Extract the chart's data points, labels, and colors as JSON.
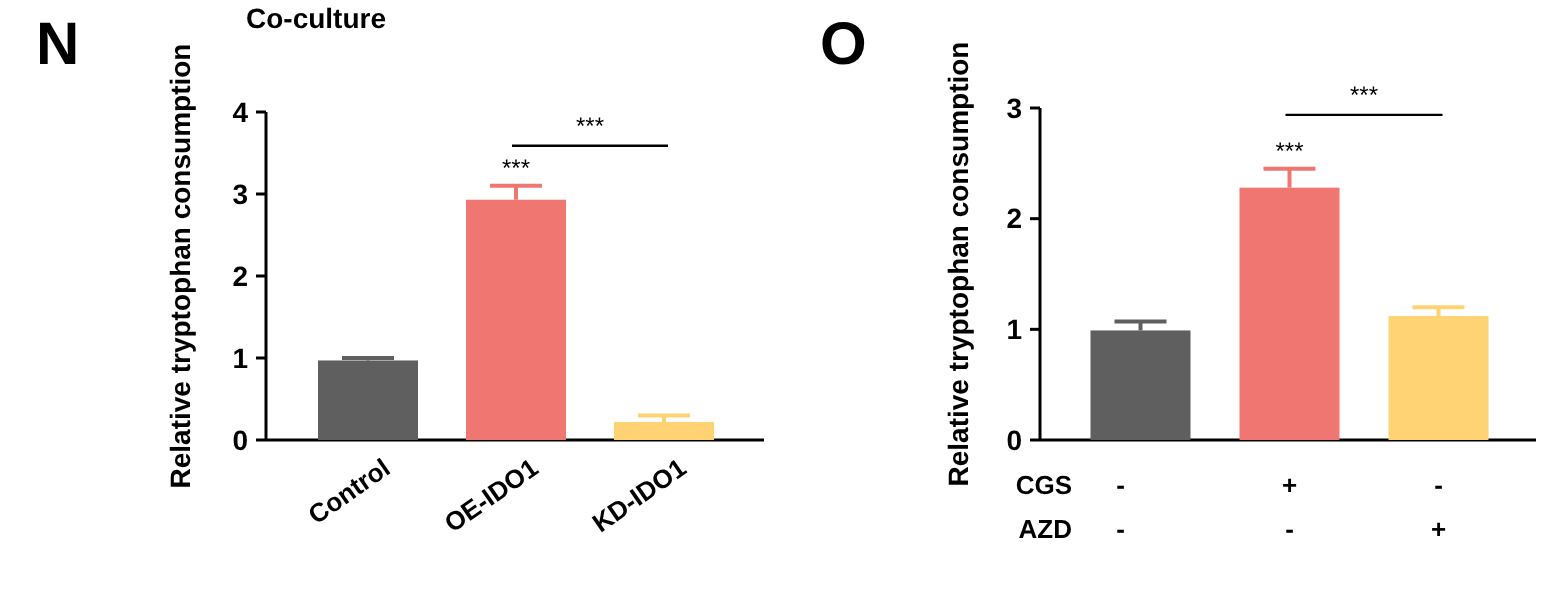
{
  "chart_data": [
    {
      "type": "bar",
      "title": "N",
      "subtitle": "Co-culture",
      "ylabel": "Relative tryptophan consumption",
      "categories": [
        "Control",
        "OE-IDO1",
        "KD-IDO1"
      ],
      "values": [
        0.97,
        2.93,
        0.22
      ],
      "colors": [
        "#5f5f5f",
        "#f07672",
        "#ffd373"
      ],
      "errors": [
        [
          0.97,
          1.0
        ],
        [
          2.93,
          3.1
        ],
        [
          0.22,
          0.3
        ]
      ],
      "ylim": [
        0,
        4
      ],
      "yticks": [
        0,
        1,
        2,
        3,
        4
      ],
      "annotations": [
        "***",
        "***"
      ]
    },
    {
      "type": "bar",
      "title": "O",
      "ylabel": "Relative tryptophan consumption",
      "xlabel": "CGS\nAZD",
      "categories": [
        "-\n-",
        "+\n-",
        "-\n+"
      ],
      "values": [
        0.99,
        2.28,
        1.12
      ],
      "colors": [
        "#5f5f5f",
        "#f07672",
        "#ffd373"
      ],
      "errors": [
        [
          0.99,
          1.07
        ],
        [
          2.28,
          2.45
        ],
        [
          1.12,
          1.2
        ]
      ],
      "ylim": [
        0,
        3
      ],
      "yticks": [
        0,
        1,
        2,
        3
      ],
      "annotations": [
        "***",
        "***"
      ]
    }
  ]
}
